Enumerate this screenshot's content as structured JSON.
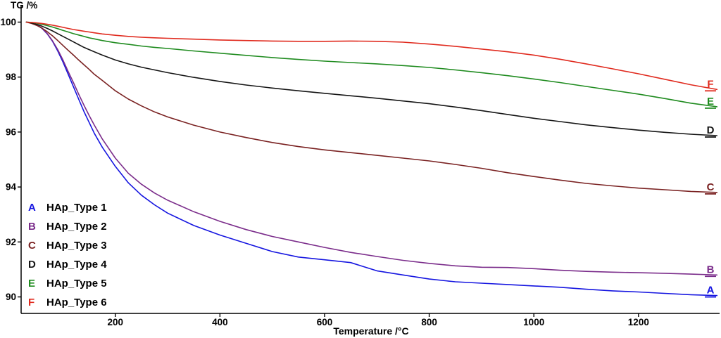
{
  "chart": {
    "y_axis_title": "TG /%",
    "x_axis_title": "Temperature /°C"
  },
  "chart_data": {
    "type": "line",
    "title": "",
    "xlabel": "Temperature /°C",
    "ylabel": "TG /%",
    "xlim": [
      20,
      1355
    ],
    "ylim": [
      89.4,
      100.6
    ],
    "x_ticks": [
      200,
      400,
      600,
      800,
      1000,
      1200
    ],
    "y_ticks": [
      90,
      92,
      94,
      96,
      98,
      100
    ],
    "grid": false,
    "legend_position": "lower left",
    "x": [
      30,
      40,
      50,
      60,
      70,
      80,
      90,
      100,
      110,
      120,
      130,
      140,
      150,
      160,
      175,
      200,
      225,
      250,
      275,
      300,
      350,
      400,
      450,
      500,
      550,
      600,
      650,
      700,
      750,
      800,
      850,
      900,
      950,
      1000,
      1050,
      1100,
      1150,
      1200,
      1250,
      1300,
      1350
    ],
    "series": [
      {
        "letter": "A",
        "name": "HAp_Type 1",
        "color": "#1515e0",
        "values": [
          100,
          99.97,
          99.9,
          99.77,
          99.57,
          99.3,
          98.95,
          98.55,
          98.1,
          97.65,
          97.2,
          96.75,
          96.35,
          95.95,
          95.45,
          94.75,
          94.15,
          93.7,
          93.35,
          93.05,
          92.6,
          92.25,
          91.95,
          91.65,
          91.45,
          91.35,
          91.25,
          90.95,
          90.8,
          90.65,
          90.55,
          90.5,
          90.45,
          90.4,
          90.35,
          90.28,
          90.22,
          90.18,
          90.13,
          90.08,
          90.05
        ]
      },
      {
        "letter": "B",
        "name": "HAp_Type 2",
        "color": "#7b2d8b",
        "values": [
          100,
          99.97,
          99.9,
          99.78,
          99.58,
          99.32,
          99.0,
          98.62,
          98.2,
          97.8,
          97.38,
          96.98,
          96.6,
          96.25,
          95.75,
          95.05,
          94.5,
          94.1,
          93.78,
          93.52,
          93.1,
          92.75,
          92.45,
          92.2,
          92.0,
          91.8,
          91.62,
          91.47,
          91.33,
          91.22,
          91.13,
          91.08,
          91.07,
          91.03,
          90.97,
          90.93,
          90.9,
          90.88,
          90.86,
          90.83,
          90.8
        ]
      },
      {
        "letter": "C",
        "name": "HAp_Type 3",
        "color": "#7a2222",
        "values": [
          100,
          99.95,
          99.88,
          99.78,
          99.65,
          99.5,
          99.33,
          99.15,
          98.97,
          98.8,
          98.62,
          98.45,
          98.28,
          98.1,
          97.88,
          97.5,
          97.2,
          96.95,
          96.73,
          96.55,
          96.25,
          96.0,
          95.8,
          95.62,
          95.47,
          95.35,
          95.25,
          95.15,
          95.05,
          94.95,
          94.82,
          94.68,
          94.52,
          94.38,
          94.25,
          94.13,
          94.04,
          93.96,
          93.9,
          93.84,
          93.8
        ]
      },
      {
        "letter": "D",
        "name": "HAp_Type 4",
        "color": "#151515",
        "values": [
          100,
          99.97,
          99.92,
          99.85,
          99.77,
          99.68,
          99.58,
          99.48,
          99.38,
          99.28,
          99.18,
          99.08,
          99.0,
          98.92,
          98.8,
          98.62,
          98.48,
          98.36,
          98.26,
          98.16,
          97.99,
          97.84,
          97.71,
          97.6,
          97.5,
          97.41,
          97.32,
          97.23,
          97.13,
          97.03,
          96.91,
          96.78,
          96.64,
          96.5,
          96.38,
          96.26,
          96.16,
          96.07,
          95.99,
          95.92,
          95.87
        ]
      },
      {
        "letter": "E",
        "name": "HAp_Type 5",
        "color": "#1f8b1f",
        "values": [
          100,
          99.99,
          99.96,
          99.92,
          99.87,
          99.82,
          99.76,
          99.7,
          99.64,
          99.58,
          99.53,
          99.48,
          99.43,
          99.39,
          99.33,
          99.25,
          99.19,
          99.13,
          99.08,
          99.04,
          98.95,
          98.87,
          98.79,
          98.71,
          98.64,
          98.58,
          98.53,
          98.48,
          98.42,
          98.35,
          98.26,
          98.16,
          98.05,
          97.93,
          97.8,
          97.66,
          97.52,
          97.38,
          97.22,
          97.05,
          96.92
        ]
      },
      {
        "letter": "F",
        "name": "HAp_Type 6",
        "color": "#e02a1e",
        "values": [
          100,
          99.99,
          99.97,
          99.95,
          99.92,
          99.89,
          99.85,
          99.81,
          99.77,
          99.73,
          99.7,
          99.67,
          99.64,
          99.61,
          99.57,
          99.52,
          99.48,
          99.45,
          99.43,
          99.41,
          99.38,
          99.35,
          99.33,
          99.31,
          99.3,
          99.3,
          99.31,
          99.3,
          99.27,
          99.2,
          99.12,
          99.02,
          98.92,
          98.8,
          98.65,
          98.48,
          98.3,
          98.12,
          97.92,
          97.72,
          97.55
        ]
      }
    ]
  }
}
